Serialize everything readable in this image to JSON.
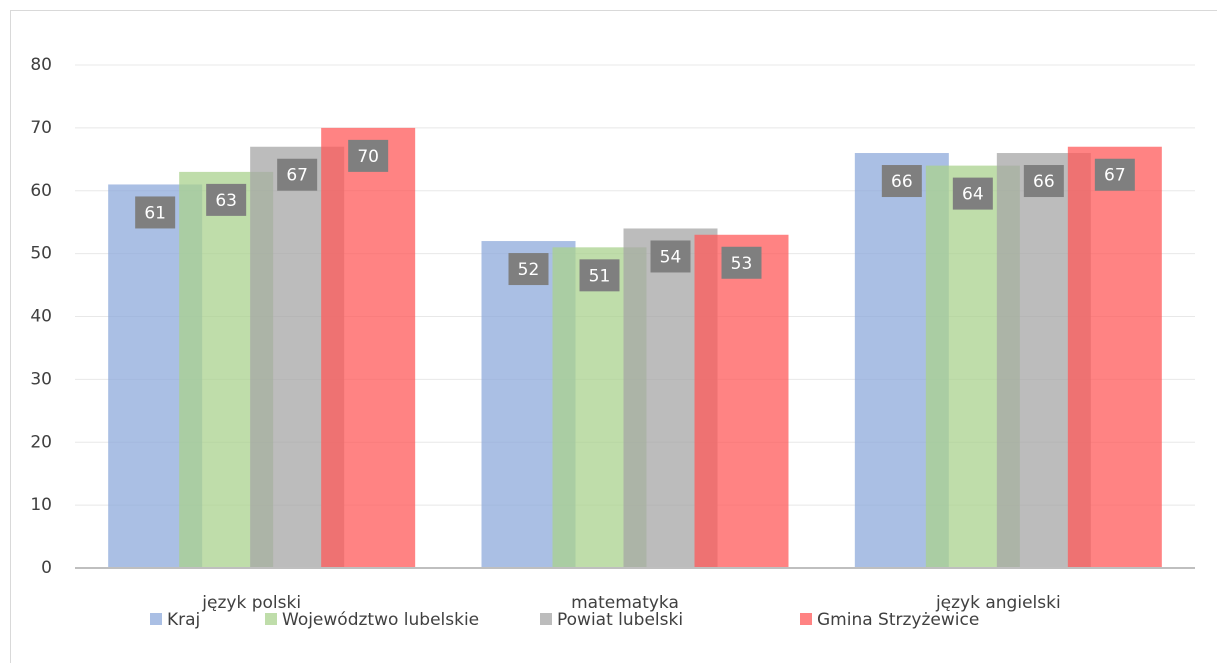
{
  "chart_data": {
    "type": "bar",
    "categories": [
      "język polski",
      "matematyka",
      "język angielski"
    ],
    "series": [
      {
        "name": "Kraj",
        "color": "#8eaadb",
        "values": [
          61,
          52,
          66
        ]
      },
      {
        "name": "Województwo lubelskie",
        "color": "#a9d18e",
        "values": [
          63,
          51,
          64
        ]
      },
      {
        "name": "Powiat lubelski",
        "color": "#a5a5a5",
        "values": [
          67,
          54,
          66
        ]
      },
      {
        "name": "Gmina Strzyżewice",
        "color": "#ff5a5a",
        "values": [
          70,
          53,
          67
        ]
      }
    ],
    "ylim": [
      0,
      80
    ],
    "yticks": [
      0,
      10,
      20,
      30,
      40,
      50,
      60,
      70,
      80
    ],
    "grid": true,
    "legend": "bottom"
  }
}
